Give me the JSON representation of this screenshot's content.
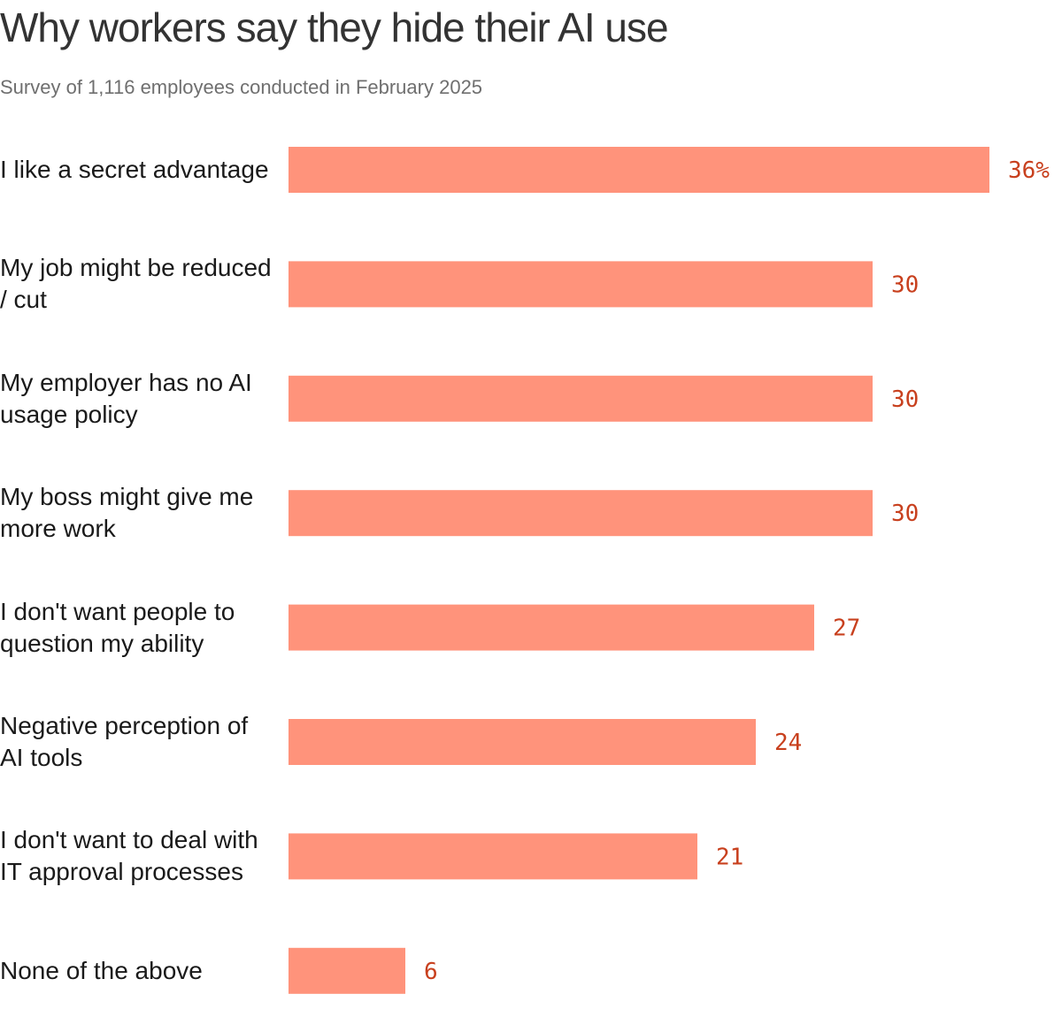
{
  "chart_data": {
    "type": "bar",
    "orientation": "horizontal",
    "title": "Why workers say they hide their AI use",
    "subtitle": "Survey of 1,116 employees conducted in February 2025",
    "categories": [
      "I like a secret advantage",
      "My job might be reduced / cut",
      "My employer has no AI usage policy",
      "My boss might give me more work",
      "I don't want people to question my ability",
      "Negative perception of AI tools",
      "I don't want to deal with IT approval processes",
      "None of the above"
    ],
    "values": [
      36,
      30,
      30,
      30,
      27,
      24,
      21,
      6
    ],
    "value_labels": [
      "36%",
      "30",
      "30",
      "30",
      "27",
      "24",
      "21",
      "6"
    ],
    "xlim": [
      0,
      36
    ],
    "grid": false,
    "legend": "none",
    "colors": {
      "bar": "#ff937b",
      "value_label": "#c8401e"
    }
  }
}
